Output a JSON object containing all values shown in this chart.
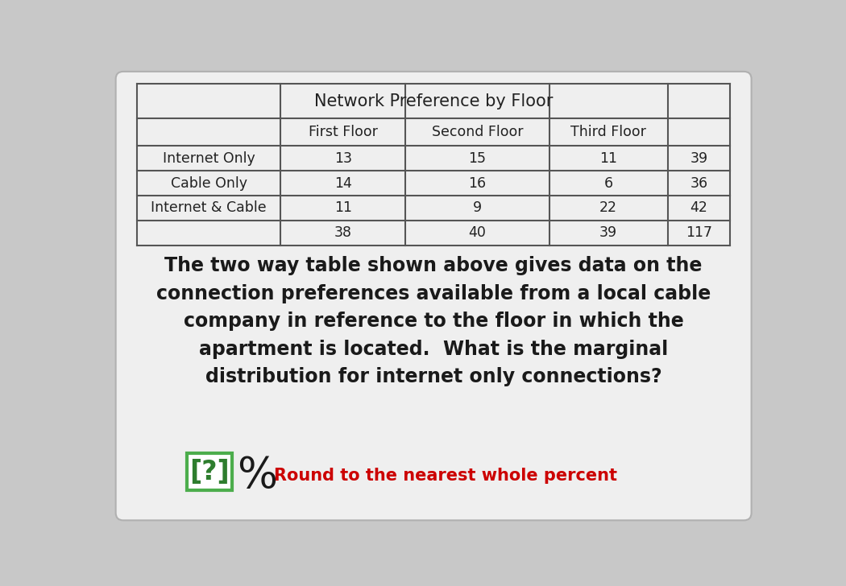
{
  "title": "Network Preference by Floor",
  "col_headers": [
    "First Floor",
    "Second Floor",
    "Third Floor"
  ],
  "row_labels": [
    "Internet Only",
    "Cable Only",
    "Internet & Cable",
    ""
  ],
  "table_data": [
    [
      13,
      15,
      11,
      39
    ],
    [
      14,
      16,
      6,
      36
    ],
    [
      11,
      9,
      22,
      42
    ],
    [
      38,
      40,
      39,
      117
    ]
  ],
  "body_text": "The two way table shown above gives data on the\nconnection preferences available from a local cable\ncompany in reference to the floor in which the\napartment is located.  What is the marginal\ndistribution for internet only connections?",
  "question_box_text": "[?]",
  "percent_text": "%",
  "round_text": "Round to the nearest whole percent",
  "background_color": "#c8c8c8",
  "card_color": "#efefef",
  "title_fontsize": 15,
  "body_fontsize": 17,
  "round_text_color": "#cc0000",
  "question_box_color": "#4cad4c",
  "question_box_text_color": "#2e7d2e"
}
